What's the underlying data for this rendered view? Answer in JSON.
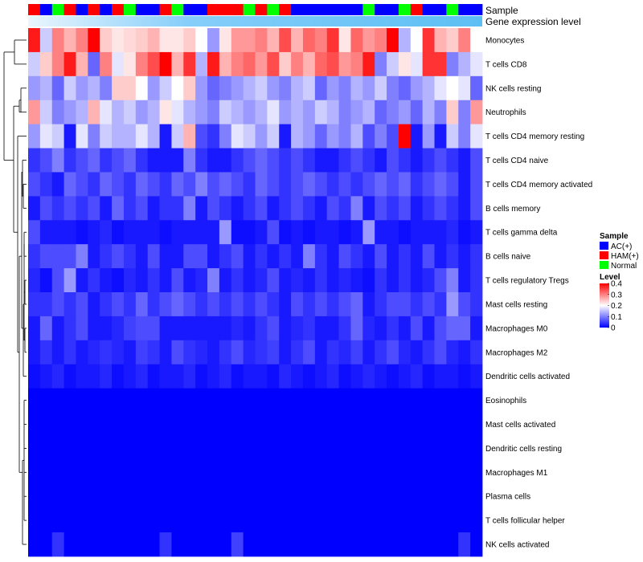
{
  "chart_data": {
    "type": "heatmap",
    "title": "",
    "annotation_tracks": [
      "Sample",
      "Gene expression level"
    ],
    "rows": [
      "Monocytes",
      "T cells CD8",
      "NK cells resting",
      "Neutrophils",
      "T cells CD4 memory resting",
      "T cells CD4 naive",
      "T cells CD4 memory activated",
      "B cells memory",
      "T cells gamma delta",
      "B cells naive",
      "T cells regulatory  Tregs",
      "Mast cells resting",
      "Macrophages M0",
      "Macrophages M2",
      "Dendritic cells activated",
      "Eosinophils",
      "Mast cells activated",
      "Dendritic cells resting",
      "Macrophages M1",
      "Plasma cells",
      "T cells follicular helper",
      "NK cells activated"
    ],
    "n_columns": 38,
    "sample_groups": [
      "HAM(+)",
      "AC(+)",
      "Normal",
      "HAM(+)",
      "AC(+)",
      "HAM(+)",
      "AC(+)",
      "HAM(+)",
      "Normal",
      "AC(+)",
      "AC(+)",
      "HAM(+)",
      "Normal",
      "AC(+)",
      "AC(+)",
      "HAM(+)",
      "HAM(+)",
      "HAM(+)",
      "Normal",
      "HAM(+)",
      "Normal",
      "HAM(+)",
      "AC(+)",
      "AC(+)",
      "AC(+)",
      "AC(+)",
      "AC(+)",
      "AC(+)",
      "Normal",
      "AC(+)",
      "AC(+)",
      "Normal",
      "HAM(+)",
      "AC(+)",
      "AC(+)",
      "Normal",
      "AC(+)",
      "AC(+)"
    ],
    "values": [
      [
        0.38,
        0.16,
        0.3,
        0.26,
        0.3,
        0.4,
        0.24,
        0.22,
        0.23,
        0.24,
        0.26,
        0.22,
        0.22,
        0.24,
        0.2,
        0.12,
        0.22,
        0.28,
        0.28,
        0.3,
        0.26,
        0.34,
        0.26,
        0.32,
        0.3,
        0.36,
        0.22,
        0.32,
        0.28,
        0.3,
        0.4,
        0.14,
        0.2,
        0.36,
        0.26,
        0.24,
        0.3,
        0.2
      ],
      [
        0.16,
        0.24,
        0.3,
        0.38,
        0.26,
        0.08,
        0.3,
        0.18,
        0.22,
        0.3,
        0.34,
        0.4,
        0.26,
        0.36,
        0.14,
        0.38,
        0.26,
        0.3,
        0.32,
        0.28,
        0.34,
        0.24,
        0.3,
        0.26,
        0.32,
        0.34,
        0.28,
        0.3,
        0.38,
        0.1,
        0.16,
        0.22,
        0.18,
        0.36,
        0.36,
        0.1,
        0.14,
        0.18
      ],
      [
        0.12,
        0.14,
        0.08,
        0.16,
        0.12,
        0.14,
        0.1,
        0.24,
        0.24,
        0.2,
        0.12,
        0.16,
        0.2,
        0.24,
        0.12,
        0.08,
        0.1,
        0.12,
        0.14,
        0.16,
        0.12,
        0.1,
        0.14,
        0.16,
        0.08,
        0.12,
        0.1,
        0.14,
        0.12,
        0.16,
        0.1,
        0.08,
        0.12,
        0.14,
        0.18,
        0.2,
        0.18,
        0.08
      ],
      [
        0.28,
        0.16,
        0.1,
        0.12,
        0.14,
        0.26,
        0.18,
        0.14,
        0.16,
        0.12,
        0.14,
        0.22,
        0.18,
        0.14,
        0.12,
        0.1,
        0.16,
        0.14,
        0.12,
        0.14,
        0.18,
        0.12,
        0.14,
        0.12,
        0.16,
        0.14,
        0.1,
        0.12,
        0.14,
        0.08,
        0.1,
        0.12,
        0.08,
        0.14,
        0.1,
        0.24,
        0.1,
        0.28
      ],
      [
        0.12,
        0.18,
        0.16,
        0.02,
        0.18,
        0.1,
        0.16,
        0.14,
        0.14,
        0.18,
        0.14,
        0.02,
        0.16,
        0.26,
        0.06,
        0.04,
        0.1,
        0.18,
        0.16,
        0.12,
        0.16,
        0.02,
        0.14,
        0.12,
        0.08,
        0.12,
        0.1,
        0.14,
        0.06,
        0.1,
        0.06,
        0.4,
        0.02,
        0.12,
        0.02,
        0.16,
        0.1,
        0.18
      ],
      [
        0.04,
        0.06,
        0.1,
        0.04,
        0.06,
        0.08,
        0.04,
        0.06,
        0.08,
        0.04,
        0.02,
        0.02,
        0.02,
        0.1,
        0.04,
        0.02,
        0.02,
        0.04,
        0.06,
        0.08,
        0.06,
        0.04,
        0.06,
        0.04,
        0.02,
        0.02,
        0.04,
        0.06,
        0.04,
        0.02,
        0.06,
        0.04,
        0.02,
        0.04,
        0.06,
        0.04,
        0.02,
        0.06
      ],
      [
        0.06,
        0.04,
        0.02,
        0.08,
        0.06,
        0.04,
        0.08,
        0.06,
        0.04,
        0.08,
        0.06,
        0.04,
        0.08,
        0.06,
        0.1,
        0.06,
        0.08,
        0.06,
        0.04,
        0.08,
        0.06,
        0.04,
        0.06,
        0.08,
        0.06,
        0.04,
        0.06,
        0.04,
        0.06,
        0.08,
        0.06,
        0.08,
        0.04,
        0.06,
        0.08,
        0.06,
        0.02,
        0.06
      ],
      [
        0.02,
        0.06,
        0.04,
        0.06,
        0.04,
        0.06,
        0.02,
        0.08,
        0.04,
        0.06,
        0.02,
        0.04,
        0.04,
        0.1,
        0.02,
        0.06,
        0.04,
        0.02,
        0.04,
        0.06,
        0.02,
        0.04,
        0.06,
        0.04,
        0.02,
        0.06,
        0.04,
        0.1,
        0.02,
        0.06,
        0.04,
        0.06,
        0.02,
        0.04,
        0.06,
        0.04,
        0.02,
        0.06
      ],
      [
        0.06,
        0.02,
        0.02,
        0.02,
        0.01,
        0.02,
        0.03,
        0.01,
        0.02,
        0.02,
        0.02,
        0.01,
        0.02,
        0.02,
        0.02,
        0.02,
        0.12,
        0.01,
        0.01,
        0.02,
        0.06,
        0.01,
        0.02,
        0.01,
        0.02,
        0.02,
        0.01,
        0.02,
        0.12,
        0.02,
        0.02,
        0.01,
        0.02,
        0.02,
        0.02,
        0.03,
        0.01,
        0.02
      ],
      [
        0.04,
        0.06,
        0.06,
        0.06,
        0.1,
        0.02,
        0.04,
        0.06,
        0.04,
        0.02,
        0.06,
        0.02,
        0.02,
        0.06,
        0.06,
        0.02,
        0.04,
        0.06,
        0.02,
        0.04,
        0.02,
        0.04,
        0.02,
        0.1,
        0.04,
        0.02,
        0.06,
        0.04,
        0.02,
        0.06,
        0.02,
        0.04,
        0.02,
        0.06,
        0.02,
        0.04,
        0.02,
        0.04
      ],
      [
        0.03,
        0.01,
        0.06,
        0.12,
        0.02,
        0.04,
        0.02,
        0.01,
        0.03,
        0.02,
        0.04,
        0.02,
        0.06,
        0.02,
        0.03,
        0.1,
        0.02,
        0.04,
        0.02,
        0.03,
        0.06,
        0.02,
        0.03,
        0.02,
        0.04,
        0.02,
        0.03,
        0.02,
        0.01,
        0.04,
        0.02,
        0.04,
        0.02,
        0.03,
        0.06,
        0.1,
        0.02,
        0.04
      ],
      [
        0.04,
        0.04,
        0.06,
        0.04,
        0.06,
        0.02,
        0.04,
        0.06,
        0.04,
        0.08,
        0.04,
        0.06,
        0.08,
        0.06,
        0.04,
        0.06,
        0.04,
        0.06,
        0.04,
        0.06,
        0.04,
        0.02,
        0.06,
        0.04,
        0.06,
        0.04,
        0.06,
        0.08,
        0.02,
        0.04,
        0.06,
        0.06,
        0.04,
        0.06,
        0.04,
        0.12,
        0.06,
        0.04
      ],
      [
        0.02,
        0.08,
        0.02,
        0.04,
        0.06,
        0.02,
        0.02,
        0.03,
        0.05,
        0.06,
        0.06,
        0.02,
        0.02,
        0.02,
        0.02,
        0.02,
        0.02,
        0.03,
        0.02,
        0.04,
        0.06,
        0.02,
        0.03,
        0.04,
        0.02,
        0.02,
        0.04,
        0.08,
        0.03,
        0.02,
        0.04,
        0.02,
        0.06,
        0.02,
        0.06,
        0.08,
        0.08,
        0.02
      ],
      [
        0.02,
        0.04,
        0.02,
        0.04,
        0.02,
        0.03,
        0.04,
        0.03,
        0.02,
        0.05,
        0.04,
        0.02,
        0.06,
        0.04,
        0.03,
        0.02,
        0.04,
        0.06,
        0.03,
        0.04,
        0.05,
        0.02,
        0.04,
        0.06,
        0.02,
        0.04,
        0.03,
        0.05,
        0.02,
        0.04,
        0.06,
        0.03,
        0.02,
        0.04,
        0.06,
        0.03,
        0.02,
        0.04
      ],
      [
        0.01,
        0.02,
        0.03,
        0.01,
        0.02,
        0.02,
        0.03,
        0.01,
        0.02,
        0.03,
        0.01,
        0.02,
        0.02,
        0.03,
        0.01,
        0.02,
        0.03,
        0.01,
        0.02,
        0.02,
        0.01,
        0.03,
        0.02,
        0.01,
        0.02,
        0.03,
        0.01,
        0.02,
        0.03,
        0.02,
        0.01,
        0.02,
        0.03,
        0.01,
        0.02,
        0.02,
        0.01,
        0.02
      ],
      [
        0,
        0,
        0,
        0,
        0,
        0,
        0,
        0,
        0,
        0,
        0,
        0,
        0,
        0,
        0,
        0,
        0,
        0,
        0,
        0,
        0,
        0,
        0,
        0,
        0,
        0,
        0,
        0,
        0,
        0,
        0,
        0,
        0,
        0,
        0,
        0,
        0,
        0
      ],
      [
        0,
        0,
        0,
        0,
        0,
        0,
        0,
        0,
        0,
        0,
        0,
        0,
        0,
        0,
        0,
        0,
        0,
        0,
        0,
        0,
        0,
        0,
        0,
        0,
        0,
        0,
        0,
        0,
        0,
        0,
        0,
        0,
        0,
        0,
        0,
        0,
        0,
        0
      ],
      [
        0,
        0,
        0,
        0,
        0,
        0,
        0,
        0,
        0,
        0,
        0,
        0,
        0,
        0,
        0,
        0,
        0,
        0,
        0,
        0,
        0,
        0,
        0,
        0,
        0,
        0,
        0,
        0,
        0,
        0,
        0,
        0,
        0,
        0,
        0,
        0,
        0,
        0
      ],
      [
        0,
        0,
        0,
        0,
        0,
        0,
        0,
        0,
        0,
        0,
        0,
        0,
        0,
        0,
        0,
        0,
        0,
        0,
        0,
        0,
        0,
        0,
        0,
        0,
        0,
        0,
        0,
        0,
        0,
        0,
        0,
        0,
        0,
        0,
        0,
        0,
        0,
        0
      ],
      [
        0,
        0,
        0,
        0,
        0,
        0,
        0,
        0,
        0,
        0,
        0,
        0,
        0,
        0,
        0,
        0,
        0,
        0,
        0,
        0,
        0,
        0,
        0,
        0,
        0,
        0,
        0,
        0,
        0,
        0,
        0,
        0,
        0,
        0,
        0,
        0,
        0,
        0
      ],
      [
        0,
        0,
        0,
        0,
        0,
        0,
        0,
        0,
        0,
        0,
        0,
        0,
        0,
        0,
        0,
        0,
        0,
        0,
        0,
        0,
        0,
        0,
        0,
        0,
        0,
        0,
        0,
        0,
        0,
        0,
        0,
        0,
        0,
        0,
        0,
        0,
        0,
        0
      ],
      [
        0,
        0,
        0.04,
        0,
        0,
        0,
        0,
        0,
        0,
        0,
        0,
        0.04,
        0,
        0,
        0,
        0,
        0,
        0.05,
        0,
        0,
        0,
        0,
        0,
        0,
        0,
        0,
        0,
        0,
        0,
        0,
        0,
        0,
        0,
        0,
        0,
        0,
        0.04,
        0
      ]
    ],
    "color_scale": {
      "min": 0,
      "max": 0.4,
      "low": "#0000ff",
      "mid": "#ffffff",
      "high": "#ff0000",
      "ticks": [
        "0.4",
        "0.3",
        "0.2",
        "0.1",
        "0"
      ]
    },
    "legend": {
      "sample_title": "Sample",
      "sample_entries": [
        {
          "label": "AC(+)",
          "color": "#0000ff"
        },
        {
          "label": "HAM(+)",
          "color": "#ff0000"
        },
        {
          "label": "Normal",
          "color": "#00ff00"
        }
      ],
      "level_title": "Level",
      "placement": "right"
    },
    "expression_level_color": "#87cefa",
    "row_dendrogram": true
  }
}
